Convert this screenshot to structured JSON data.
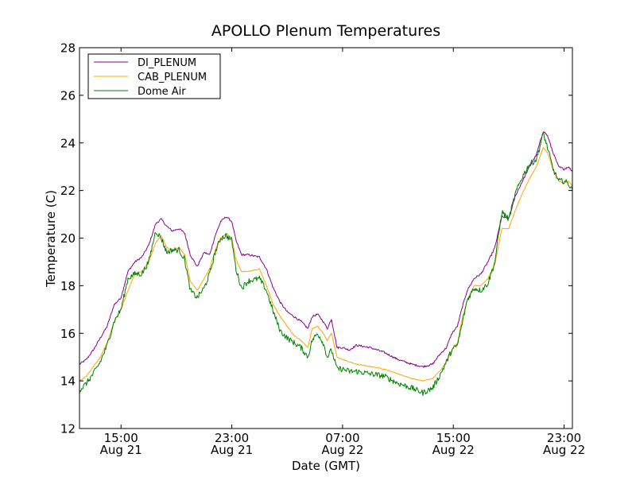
{
  "chart_data": {
    "type": "line",
    "title": "APOLLO Plenum Temperatures",
    "xlabel": "Date (GMT)",
    "ylabel": "Temperature (C)",
    "ylim": [
      12,
      28
    ],
    "xlim_hours": [
      12.0,
      47.6
    ],
    "grid": false,
    "legend_position": "top-left",
    "yticks": [
      12,
      14,
      16,
      18,
      20,
      22,
      24,
      26,
      28
    ],
    "xticks": [
      {
        "hour": 15,
        "time": "15:00",
        "date": "Aug 21"
      },
      {
        "hour": 23,
        "time": "23:00",
        "date": "Aug 21"
      },
      {
        "hour": 31,
        "time": "07:00",
        "date": "Aug 22"
      },
      {
        "hour": 39,
        "time": "15:00",
        "date": "Aug 22"
      },
      {
        "hour": 47,
        "time": "23:00",
        "date": "Aug 22"
      }
    ],
    "series": [
      {
        "name": "DI_PLENUM",
        "color": "#8b008b",
        "points": [
          [
            12.0,
            14.7
          ],
          [
            12.5,
            14.9
          ],
          [
            13.0,
            15.3
          ],
          [
            13.5,
            15.8
          ],
          [
            14.0,
            16.3
          ],
          [
            14.5,
            17.2
          ],
          [
            15.0,
            17.5
          ],
          [
            15.5,
            18.6
          ],
          [
            16.0,
            19.0
          ],
          [
            16.5,
            19.2
          ],
          [
            17.0,
            19.7
          ],
          [
            17.5,
            20.6
          ],
          [
            17.9,
            20.8
          ],
          [
            18.3,
            20.5
          ],
          [
            18.7,
            20.3
          ],
          [
            19.2,
            20.4
          ],
          [
            19.6,
            20.2
          ],
          [
            20.0,
            19.3
          ],
          [
            20.5,
            18.8
          ],
          [
            21.0,
            19.4
          ],
          [
            21.4,
            19.3
          ],
          [
            21.8,
            20.1
          ],
          [
            22.2,
            20.7
          ],
          [
            22.6,
            20.9
          ],
          [
            23.0,
            20.7
          ],
          [
            23.3,
            19.9
          ],
          [
            23.7,
            19.3
          ],
          [
            24.2,
            19.3
          ],
          [
            25.0,
            19.2
          ],
          [
            25.5,
            18.7
          ],
          [
            26.0,
            17.9
          ],
          [
            26.5,
            17.3
          ],
          [
            27.0,
            16.9
          ],
          [
            27.5,
            16.7
          ],
          [
            28.0,
            16.5
          ],
          [
            28.5,
            16.2
          ],
          [
            28.8,
            16.7
          ],
          [
            29.2,
            16.8
          ],
          [
            29.6,
            16.5
          ],
          [
            29.9,
            16.2
          ],
          [
            30.2,
            16.6
          ],
          [
            30.6,
            15.4
          ],
          [
            31.0,
            15.4
          ],
          [
            31.5,
            15.3
          ],
          [
            32.0,
            15.5
          ],
          [
            33.0,
            15.4
          ],
          [
            34.0,
            15.2
          ],
          [
            35.0,
            14.9
          ],
          [
            36.0,
            14.7
          ],
          [
            36.8,
            14.6
          ],
          [
            37.5,
            14.7
          ],
          [
            38.0,
            15.1
          ],
          [
            38.5,
            15.4
          ],
          [
            38.9,
            16.0
          ],
          [
            39.3,
            16.3
          ],
          [
            39.6,
            17.0
          ],
          [
            40.0,
            17.8
          ],
          [
            40.5,
            18.3
          ],
          [
            41.0,
            18.5
          ],
          [
            41.5,
            19.0
          ],
          [
            42.0,
            19.6
          ],
          [
            42.5,
            20.9
          ],
          [
            43.0,
            20.8
          ],
          [
            43.5,
            21.8
          ],
          [
            44.0,
            22.4
          ],
          [
            44.5,
            23.0
          ],
          [
            45.0,
            23.5
          ],
          [
            45.5,
            24.5
          ],
          [
            45.8,
            24.3
          ],
          [
            46.2,
            23.6
          ],
          [
            46.6,
            23.0
          ],
          [
            47.0,
            22.9
          ],
          [
            47.3,
            23.0
          ],
          [
            47.6,
            22.8
          ]
        ]
      },
      {
        "name": "CAB_PLENUM",
        "color": "#ffa500",
        "points": [
          [
            12.0,
            14.0
          ],
          [
            12.5,
            14.2
          ],
          [
            13.0,
            14.6
          ],
          [
            13.5,
            15.0
          ],
          [
            14.0,
            15.6
          ],
          [
            14.5,
            16.5
          ],
          [
            15.0,
            17.0
          ],
          [
            15.5,
            17.8
          ],
          [
            16.0,
            18.5
          ],
          [
            16.5,
            18.6
          ],
          [
            17.0,
            19.0
          ],
          [
            17.5,
            19.8
          ],
          [
            17.9,
            20.1
          ],
          [
            18.3,
            19.6
          ],
          [
            18.7,
            19.5
          ],
          [
            19.2,
            19.6
          ],
          [
            19.6,
            19.3
          ],
          [
            20.0,
            18.2
          ],
          [
            20.5,
            17.8
          ],
          [
            21.0,
            18.3
          ],
          [
            21.4,
            18.7
          ],
          [
            21.8,
            19.5
          ],
          [
            22.2,
            20.0
          ],
          [
            22.6,
            20.2
          ],
          [
            23.0,
            20.0
          ],
          [
            23.3,
            19.1
          ],
          [
            23.7,
            18.6
          ],
          [
            24.2,
            18.6
          ],
          [
            25.0,
            18.7
          ],
          [
            25.5,
            18.0
          ],
          [
            26.0,
            17.2
          ],
          [
            26.5,
            16.7
          ],
          [
            27.0,
            16.3
          ],
          [
            27.5,
            15.9
          ],
          [
            28.0,
            15.7
          ],
          [
            28.5,
            15.4
          ],
          [
            28.8,
            16.2
          ],
          [
            29.2,
            16.3
          ],
          [
            29.6,
            16.0
          ],
          [
            29.9,
            15.7
          ],
          [
            30.2,
            16.0
          ],
          [
            30.6,
            15.0
          ],
          [
            31.0,
            14.9
          ],
          [
            31.5,
            14.8
          ],
          [
            32.0,
            14.7
          ],
          [
            33.0,
            14.6
          ],
          [
            34.0,
            14.5
          ],
          [
            35.0,
            14.3
          ],
          [
            36.0,
            14.1
          ],
          [
            36.8,
            14.0
          ],
          [
            37.5,
            14.1
          ],
          [
            38.0,
            14.4
          ],
          [
            38.5,
            14.8
          ],
          [
            38.9,
            15.3
          ],
          [
            39.3,
            15.6
          ],
          [
            39.6,
            16.5
          ],
          [
            40.0,
            17.4
          ],
          [
            40.5,
            18.0
          ],
          [
            41.0,
            18.0
          ],
          [
            41.5,
            18.3
          ],
          [
            42.0,
            18.9
          ],
          [
            42.5,
            20.4
          ],
          [
            43.0,
            20.4
          ],
          [
            43.5,
            21.2
          ],
          [
            44.0,
            21.9
          ],
          [
            44.5,
            22.5
          ],
          [
            45.0,
            23.0
          ],
          [
            45.5,
            23.8
          ],
          [
            45.8,
            23.6
          ],
          [
            46.2,
            22.9
          ],
          [
            46.6,
            22.4
          ],
          [
            47.0,
            22.3
          ],
          [
            47.3,
            22.4
          ],
          [
            47.6,
            22.2
          ]
        ]
      },
      {
        "name": "Dome Air",
        "color": "#008000",
        "points": [
          [
            12.0,
            13.6
          ],
          [
            12.5,
            13.9
          ],
          [
            13.0,
            14.3
          ],
          [
            13.5,
            14.8
          ],
          [
            14.0,
            15.5
          ],
          [
            14.5,
            16.5
          ],
          [
            15.0,
            17.0
          ],
          [
            15.5,
            18.3
          ],
          [
            16.0,
            18.5
          ],
          [
            16.5,
            18.5
          ],
          [
            17.0,
            19.0
          ],
          [
            17.5,
            20.3
          ],
          [
            17.9,
            20.0
          ],
          [
            18.3,
            19.4
          ],
          [
            18.7,
            19.5
          ],
          [
            19.2,
            19.5
          ],
          [
            19.6,
            19.1
          ],
          [
            20.0,
            17.8
          ],
          [
            20.5,
            17.5
          ],
          [
            21.0,
            17.9
          ],
          [
            21.4,
            18.5
          ],
          [
            21.8,
            19.4
          ],
          [
            22.2,
            20.0
          ],
          [
            22.6,
            20.1
          ],
          [
            23.0,
            19.9
          ],
          [
            23.3,
            18.7
          ],
          [
            23.7,
            17.9
          ],
          [
            24.2,
            18.2
          ],
          [
            25.0,
            18.3
          ],
          [
            25.5,
            17.8
          ],
          [
            26.0,
            16.9
          ],
          [
            26.5,
            16.1
          ],
          [
            27.0,
            15.8
          ],
          [
            27.5,
            15.6
          ],
          [
            28.0,
            15.4
          ],
          [
            28.5,
            15.0
          ],
          [
            28.8,
            15.7
          ],
          [
            29.2,
            16.0
          ],
          [
            29.6,
            15.6
          ],
          [
            29.9,
            15.0
          ],
          [
            30.2,
            15.3
          ],
          [
            30.6,
            14.5
          ],
          [
            31.0,
            14.5
          ],
          [
            31.5,
            14.4
          ],
          [
            32.0,
            14.4
          ],
          [
            33.0,
            14.3
          ],
          [
            34.0,
            14.2
          ],
          [
            35.0,
            13.9
          ],
          [
            36.0,
            13.7
          ],
          [
            36.8,
            13.5
          ],
          [
            37.5,
            13.7
          ],
          [
            38.0,
            14.2
          ],
          [
            38.5,
            14.8
          ],
          [
            38.9,
            15.3
          ],
          [
            39.3,
            15.5
          ],
          [
            39.6,
            16.3
          ],
          [
            40.0,
            17.4
          ],
          [
            40.5,
            17.9
          ],
          [
            41.0,
            17.8
          ],
          [
            41.5,
            18.1
          ],
          [
            42.0,
            19.0
          ],
          [
            42.5,
            21.1
          ],
          [
            43.0,
            20.8
          ],
          [
            43.5,
            21.9
          ],
          [
            44.0,
            22.6
          ],
          [
            44.5,
            23.1
          ],
          [
            45.0,
            23.3
          ],
          [
            45.5,
            24.4
          ],
          [
            45.8,
            23.8
          ],
          [
            46.2,
            22.9
          ],
          [
            46.6,
            22.4
          ],
          [
            47.0,
            22.4
          ],
          [
            47.3,
            22.3
          ],
          [
            47.6,
            22.0
          ]
        ]
      }
    ]
  }
}
